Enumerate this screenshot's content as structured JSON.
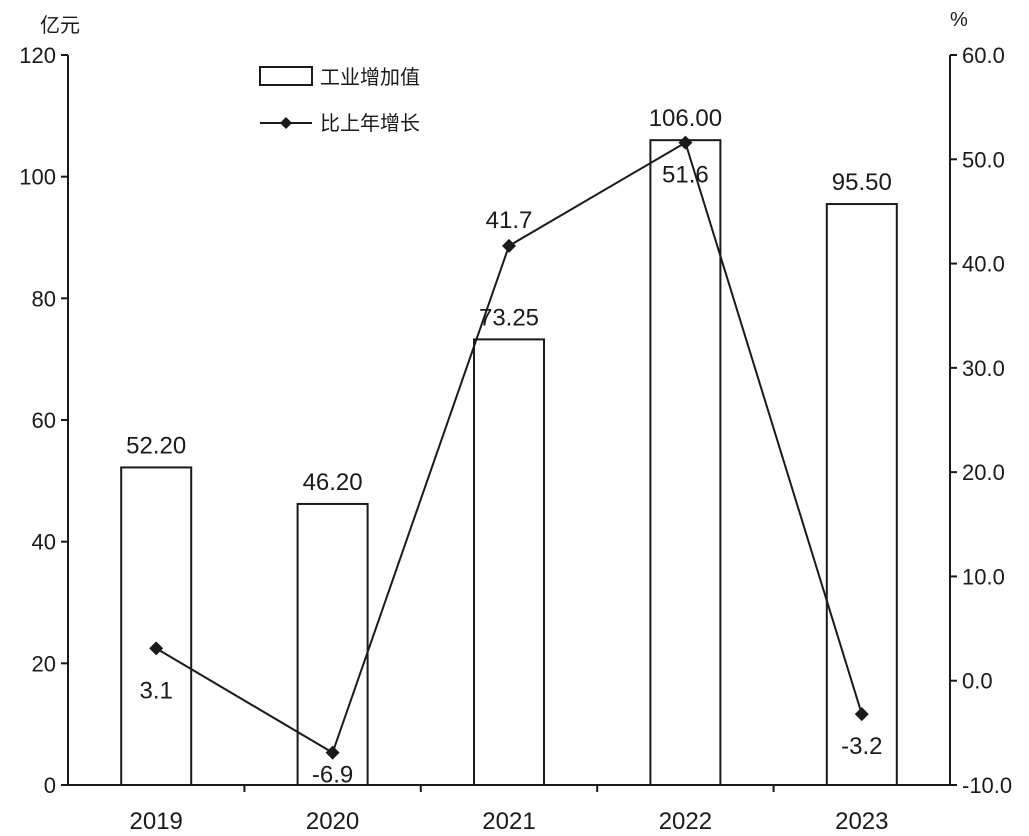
{
  "chart_data": {
    "type": "bar",
    "categories": [
      "2019",
      "2020",
      "2021",
      "2022",
      "2023"
    ],
    "left_axis": {
      "unit_label": "亿元",
      "ylim": [
        0,
        120
      ],
      "ticks": [
        "0",
        "20",
        "40",
        "60",
        "80",
        "100",
        "120"
      ]
    },
    "right_axis": {
      "unit_label": "%",
      "ylim": [
        -10,
        60
      ],
      "ticks": [
        "-10.0",
        "0.0",
        "10.0",
        "20.0",
        "30.0",
        "40.0",
        "50.0",
        "60.0"
      ]
    },
    "series": [
      {
        "name": "工业增加值",
        "type": "bar",
        "axis": "left",
        "values": [
          52.2,
          46.2,
          73.25,
          106.0,
          95.5
        ],
        "labels": [
          "52.20",
          "46.20",
          "73.25",
          "106.00",
          "95.50"
        ]
      },
      {
        "name": "比上年增长",
        "type": "line",
        "axis": "right",
        "values": [
          3.1,
          -6.9,
          41.7,
          51.6,
          -3.2
        ],
        "labels": [
          "3.1",
          "-6.9",
          "41.7",
          "51.6",
          "-3.2"
        ]
      }
    ],
    "legend_position": "top-left",
    "grid": false,
    "colors": {
      "bar_fill": "#ffffff",
      "bar_stroke": "#1a1a1a",
      "line": "#1a1a1a",
      "marker": "#1a1a1a"
    }
  }
}
